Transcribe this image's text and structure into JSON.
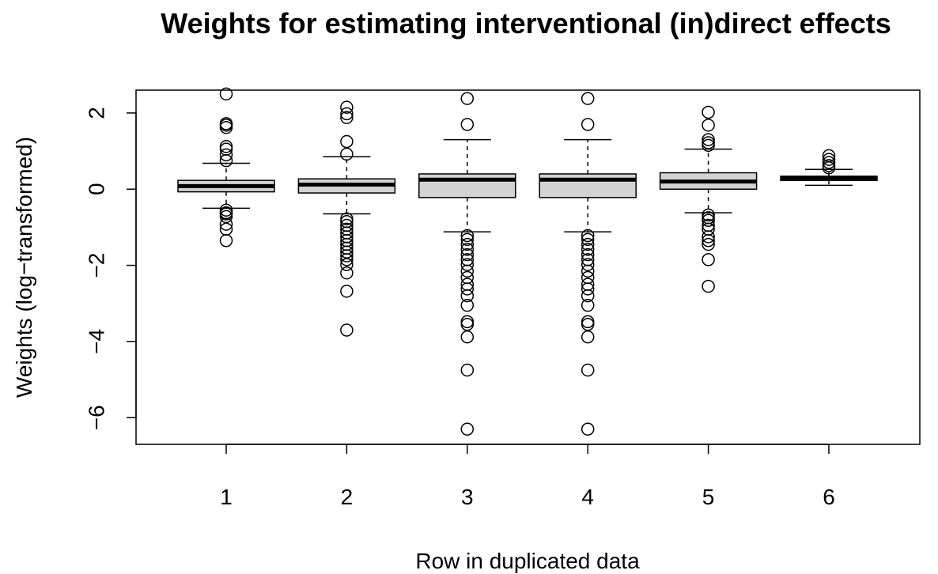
{
  "chart_data": {
    "type": "boxplot",
    "title": "Weights for estimating interventional (in)direct effects",
    "xlabel": "Row in duplicated data",
    "ylabel": "Weights (log−transformed)",
    "categories": [
      "1",
      "2",
      "3",
      "4",
      "5",
      "6"
    ],
    "ylim": [
      -6.7,
      2.6
    ],
    "yticks": [
      -6,
      -4,
      -2,
      0,
      2
    ],
    "ytick_labels": [
      "−6",
      "−4",
      "−2",
      "0",
      "2"
    ],
    "grid": false,
    "box_fill": "#d3d3d3",
    "boxes": [
      {
        "category": "1",
        "whisker_low": -0.5,
        "q1": -0.07,
        "median": 0.08,
        "q3": 0.23,
        "whisker_high": 0.68,
        "outliers": [
          2.5,
          1.72,
          1.68,
          1.62,
          1.12,
          1.05,
          0.9,
          0.75,
          -0.55,
          -0.62,
          -0.65,
          -0.72,
          -0.92,
          -1.05,
          -1.35
        ]
      },
      {
        "category": "2",
        "whisker_low": -0.65,
        "q1": -0.1,
        "median": 0.12,
        "q3": 0.27,
        "whisker_high": 0.85,
        "outliers": [
          2.15,
          1.98,
          1.88,
          1.25,
          0.92,
          -0.78,
          -0.85,
          -0.95,
          -1.05,
          -1.15,
          -1.25,
          -1.35,
          -1.45,
          -1.55,
          -1.65,
          -1.75,
          -1.85,
          -1.98,
          -2.2,
          -2.68,
          -3.7
        ]
      },
      {
        "category": "3",
        "whisker_low": -1.12,
        "q1": -0.22,
        "median": 0.25,
        "q3": 0.4,
        "whisker_high": 1.3,
        "outliers": [
          2.38,
          1.7,
          -1.22,
          -1.32,
          -1.45,
          -1.58,
          -1.72,
          -1.85,
          -1.98,
          -2.15,
          -2.32,
          -2.5,
          -2.62,
          -2.8,
          -3.05,
          -3.48,
          -3.55,
          -3.88,
          -4.75,
          -6.3
        ]
      },
      {
        "category": "4",
        "whisker_low": -1.12,
        "q1": -0.22,
        "median": 0.25,
        "q3": 0.4,
        "whisker_high": 1.3,
        "outliers": [
          2.38,
          1.7,
          -1.22,
          -1.32,
          -1.45,
          -1.58,
          -1.72,
          -1.85,
          -1.98,
          -2.15,
          -2.32,
          -2.5,
          -2.62,
          -2.8,
          -3.05,
          -3.48,
          -3.55,
          -3.88,
          -4.75,
          -6.3
        ]
      },
      {
        "category": "5",
        "whisker_low": -0.62,
        "q1": 0.0,
        "median": 0.2,
        "q3": 0.43,
        "whisker_high": 1.05,
        "outliers": [
          2.02,
          1.68,
          1.3,
          1.22,
          1.15,
          -0.68,
          -0.75,
          -0.82,
          -0.95,
          -1.05,
          -1.25,
          -1.35,
          -1.45,
          -1.85,
          -2.55
        ]
      },
      {
        "category": "6",
        "whisker_low": 0.1,
        "q1": 0.23,
        "median": 0.29,
        "q3": 0.34,
        "whisker_high": 0.52,
        "outliers": [
          0.88,
          0.78,
          0.7,
          0.62,
          0.56
        ]
      }
    ]
  }
}
